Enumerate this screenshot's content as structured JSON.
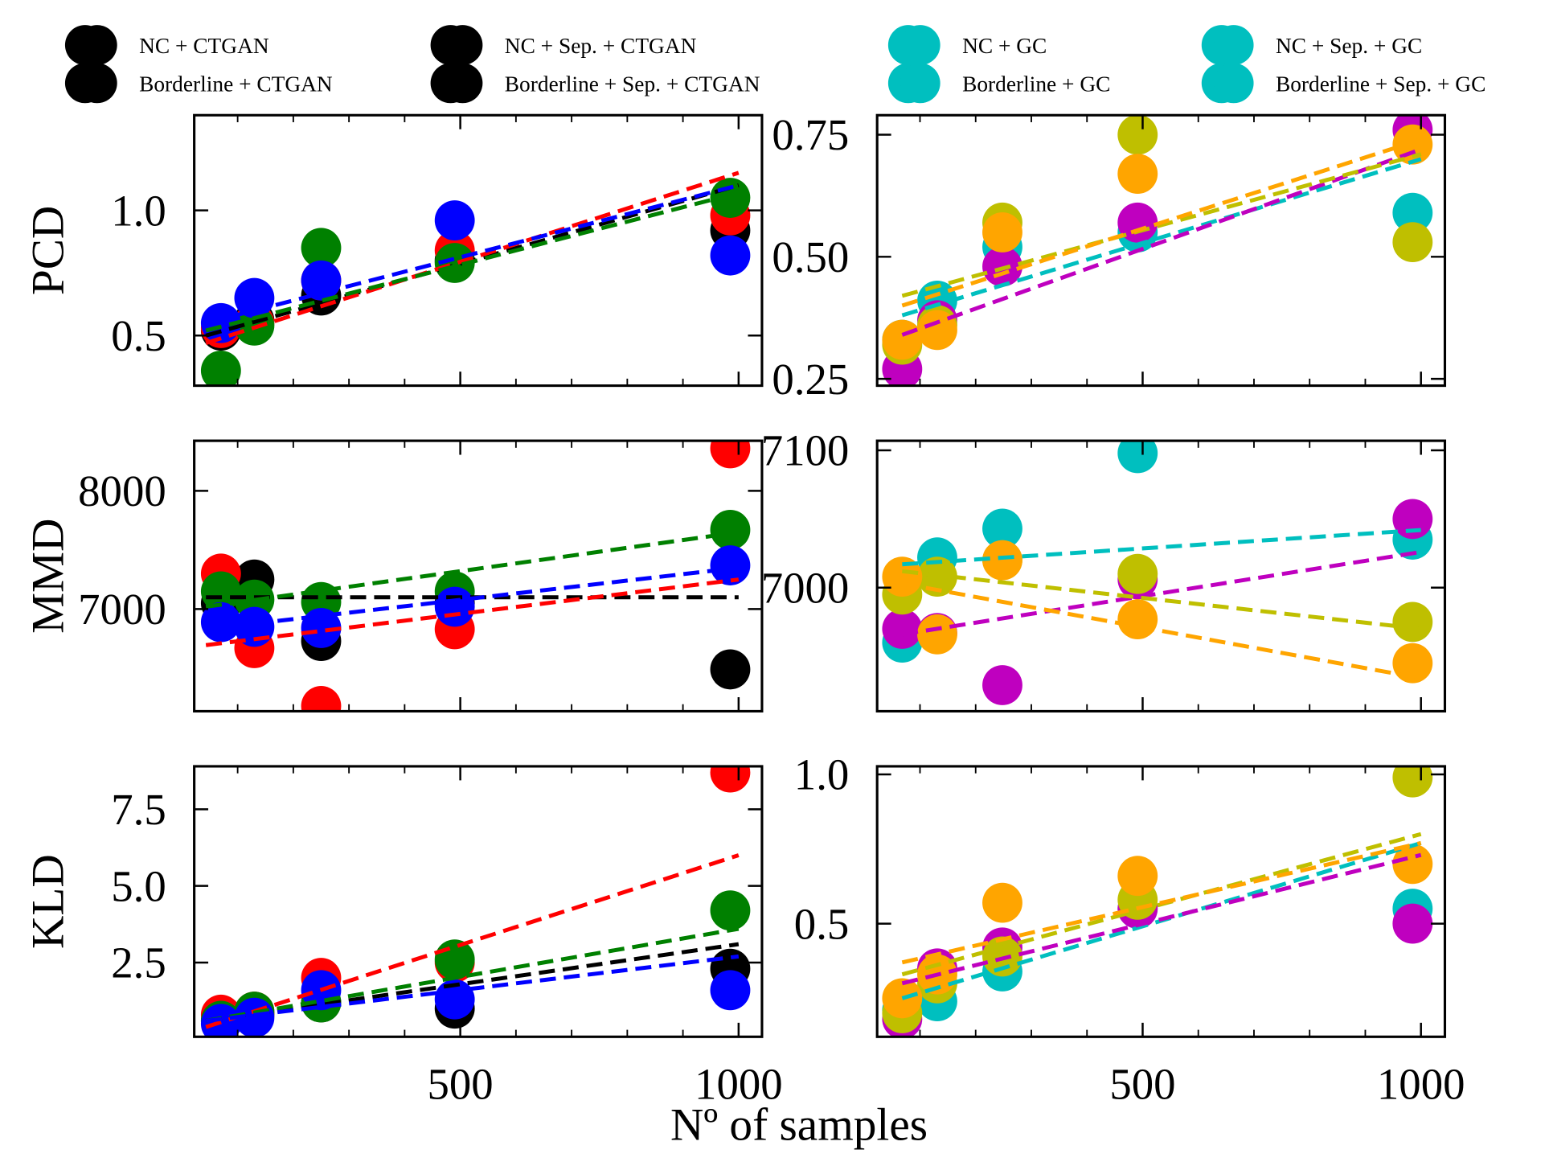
{
  "xlabel": "Nº of samples",
  "legend": [
    {
      "name": "NC + CTGAN",
      "color": "#000000"
    },
    {
      "name": "Borderline + CTGAN",
      "color": "#000000"
    },
    {
      "name": "NC + Sep. + CTGAN",
      "color": "#000000"
    },
    {
      "name": "Borderline + Sep. + CTGAN",
      "color": "#000000"
    },
    {
      "name": "NC + GC",
      "color": "#00bfbf"
    },
    {
      "name": "Borderline + GC",
      "color": "#00bfbf"
    },
    {
      "name": "NC + Sep. + GC",
      "color": "#00bfbf"
    },
    {
      "name": "Borderline + Sep. + GC",
      "color": "#00bfbf"
    }
  ],
  "chart_data": [
    {
      "type": "scatter",
      "ylabel": "PCD",
      "x": [
        70,
        130,
        250,
        490,
        985
      ],
      "trend_x": [
        43,
        1000
      ],
      "xlim": [
        22,
        1042
      ],
      "xticks": [
        500,
        1000
      ],
      "xminorticks": [
        100,
        200,
        300,
        400,
        600,
        700,
        800,
        900
      ],
      "ylim": [
        0.3,
        1.38
      ],
      "yticks": [
        0.5,
        {
          "value": 1,
          "label": "1.0"
        }
      ],
      "series": [
        {
          "color": "#000000",
          "values": [
            0.52,
            0.56,
            0.66,
            0.8,
            0.92
          ],
          "trend": [
            0.5,
            1.1
          ]
        },
        {
          "color": "#ff0000",
          "values": [
            0.53,
            0.55,
            0.72,
            0.84,
            0.98
          ],
          "trend": [
            0.47,
            1.15
          ]
        },
        {
          "color": "#008000",
          "values": [
            0.36,
            0.54,
            0.85,
            0.79,
            1.05
          ],
          "trend": [
            0.52,
            1.07
          ]
        },
        {
          "color": "#0000ff",
          "values": [
            0.55,
            0.65,
            0.72,
            0.96,
            0.82
          ],
          "trend": [
            0.55,
            1.1
          ]
        }
      ]
    },
    {
      "type": "scatter",
      "x": [
        68,
        131,
        248,
        491,
        985
      ],
      "trend_x": [
        68,
        1000
      ],
      "xlim": [
        23,
        1043
      ],
      "xticks": [
        500,
        1000
      ],
      "xminorticks": [
        100,
        200,
        300,
        400,
        600,
        700,
        800,
        900
      ],
      "ylim": [
        0.236,
        0.79
      ],
      "yticks": [
        0.25,
        {
          "value": 0.5,
          "label": "0.50"
        },
        0.75
      ],
      "series": [
        {
          "color": "#00bfbf",
          "values": [
            0.33,
            0.41,
            0.52,
            0.55,
            0.59
          ],
          "trend": [
            0.38,
            0.7
          ]
        },
        {
          "color": "#bf00bf",
          "values": [
            0.27,
            0.37,
            0.48,
            0.57,
            0.76
          ],
          "trend": [
            0.34,
            0.72
          ]
        },
        {
          "color": "#bfbf00",
          "values": [
            0.32,
            0.36,
            0.57,
            0.75,
            0.53
          ],
          "trend": [
            0.42,
            0.71
          ]
        },
        {
          "color": "#ffa500",
          "values": [
            0.33,
            0.35,
            0.55,
            0.67,
            0.73
          ],
          "trend": [
            0.4,
            0.74
          ]
        }
      ]
    },
    {
      "type": "scatter",
      "ylabel": "MMD",
      "x": [
        70,
        130,
        250,
        490,
        985
      ],
      "trend_x": [
        43,
        1000
      ],
      "xlim": [
        22,
        1042
      ],
      "xticks": [
        500,
        1000
      ],
      "xminorticks": [
        100,
        200,
        300,
        400,
        600,
        700,
        800,
        900
      ],
      "ylim": [
        6136,
        8424
      ],
      "yticks": [
        7000,
        8000
      ],
      "series": [
        {
          "color": "#000000",
          "values": [
            7050,
            7250,
            6730,
            7050,
            6490
          ],
          "trend": [
            7100,
            7100
          ]
        },
        {
          "color": "#ff0000",
          "values": [
            7300,
            6670,
            6180,
            6830,
            8360
          ],
          "trend": [
            6695,
            7250
          ]
        },
        {
          "color": "#008000",
          "values": [
            7150,
            7080,
            7060,
            7150,
            7670
          ],
          "trend": [
            7020,
            7650
          ]
        },
        {
          "color": "#0000ff",
          "values": [
            6890,
            6850,
            6840,
            7020,
            7370
          ],
          "trend": [
            6830,
            7350
          ]
        }
      ]
    },
    {
      "type": "scatter",
      "x": [
        68,
        131,
        248,
        491,
        985
      ],
      "trend_x": [
        68,
        1000
      ],
      "xlim": [
        23,
        1043
      ],
      "xticks": [
        500,
        1000
      ],
      "xminorticks": [
        100,
        200,
        300,
        400,
        600,
        700,
        800,
        900
      ],
      "ylim": [
        6910,
        7107
      ],
      "yticks": [
        7000,
        7100
      ],
      "series": [
        {
          "color": "#00bfbf",
          "values": [
            6960,
            7022,
            7043,
            7098,
            7035
          ],
          "trend": [
            7017,
            7042
          ]
        },
        {
          "color": "#bf00bf",
          "values": [
            6970,
            6967,
            6929,
            7006,
            7050
          ],
          "trend": [
            6966,
            7026
          ]
        },
        {
          "color": "#bfbf00",
          "values": [
            6995,
            7008,
            7020,
            7010,
            6975
          ],
          "trend": [
            7012,
            6970
          ]
        },
        {
          "color": "#ffa500",
          "values": [
            7008,
            6966,
            7020,
            6977,
            6945
          ],
          "trend": [
            7003,
            6934
          ]
        }
      ]
    },
    {
      "type": "scatter",
      "ylabel": "KLD",
      "x": [
        70,
        130,
        250,
        490,
        985
      ],
      "trend_x": [
        43,
        1000
      ],
      "xlim": [
        22,
        1042
      ],
      "xticks": [
        500,
        1000
      ],
      "xminorticks": [
        100,
        200,
        300,
        400,
        600,
        700,
        800,
        900
      ],
      "ylim": [
        0.08,
        8.9
      ],
      "yticks": [
        2.5,
        {
          "value": 5,
          "label": "5.0"
        },
        7.5
      ],
      "series": [
        {
          "color": "#000000",
          "values": [
            0.6,
            0.8,
            1.2,
            1.0,
            2.3
          ],
          "trend": [
            0.6,
            3.1
          ]
        },
        {
          "color": "#ff0000",
          "values": [
            0.8,
            0.9,
            2.0,
            2.5,
            8.7
          ],
          "trend": [
            0.4,
            6.0
          ]
        },
        {
          "color": "#008000",
          "values": [
            0.6,
            0.9,
            1.2,
            2.6,
            4.2
          ],
          "trend": [
            0.6,
            3.6
          ]
        },
        {
          "color": "#0000ff",
          "values": [
            0.5,
            0.7,
            1.6,
            1.3,
            1.6
          ],
          "trend": [
            0.6,
            2.7
          ]
        }
      ]
    },
    {
      "type": "scatter",
      "x": [
        68,
        131,
        248,
        491,
        985
      ],
      "trend_x": [
        68,
        1000
      ],
      "xlim": [
        23,
        1043
      ],
      "xticks": [
        500,
        1000
      ],
      "xminorticks": [
        100,
        200,
        300,
        400,
        600,
        700,
        800,
        900
      ],
      "ylim": [
        0.121,
        1.027
      ],
      "yticks": [
        0.5,
        {
          "value": 1,
          "label": "1.0"
        }
      ],
      "series": [
        {
          "color": "#00bfbf",
          "values": [
            0.21,
            0.24,
            0.34,
            0.55,
            0.55
          ],
          "trend": [
            0.25,
            0.77
          ]
        },
        {
          "color": "#bf00bf",
          "values": [
            0.18,
            0.35,
            0.42,
            0.55,
            0.5
          ],
          "trend": [
            0.3,
            0.73
          ]
        },
        {
          "color": "#bfbf00",
          "values": [
            0.2,
            0.3,
            0.39,
            0.58,
            0.99
          ],
          "trend": [
            0.33,
            0.8
          ]
        },
        {
          "color": "#ffa500",
          "values": [
            0.25,
            0.33,
            0.57,
            0.66,
            0.7
          ],
          "trend": [
            0.37,
            0.77
          ]
        }
      ]
    }
  ]
}
